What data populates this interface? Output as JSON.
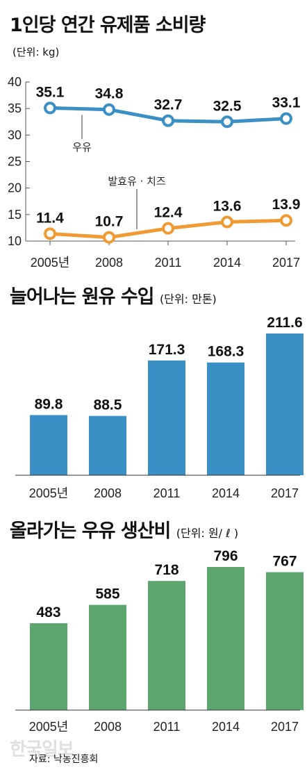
{
  "title1": "1인당 연간 유제품 소비량",
  "unit1": "(단위: kg)",
  "title2": "늘어나는 원유 수입",
  "unit2": "(단위: 만톤)",
  "title3": "올라가는 우유 생산비",
  "unit3": "(단위: 원/ ℓ )",
  "source": "자료: 낙농진흥회",
  "watermark": "한국일보",
  "colors": {
    "milk": "#3a8fc4",
    "fermented": "#ef9a32",
    "import_bar": "#3a8fc4",
    "cost_bar": "#5da56e"
  },
  "chart_data": [
    {
      "type": "line",
      "title": "1인당 연간 유제품 소비량",
      "x": [
        "2005년",
        "2008",
        "2011",
        "2014",
        "2017"
      ],
      "yticks": [
        "40",
        "35",
        "30",
        "25",
        "20",
        "15",
        "10"
      ],
      "ylim": [
        10,
        40
      ],
      "series": [
        {
          "name": "우유",
          "values": [
            35.1,
            34.8,
            32.7,
            32.5,
            33.1
          ],
          "labels": [
            "35.1",
            "34.8",
            "32.7",
            "32.5",
            "33.1"
          ]
        },
        {
          "name": "발효유 · 치즈",
          "values": [
            11.4,
            10.7,
            12.4,
            13.6,
            13.9
          ],
          "labels": [
            "11.4",
            "10.7",
            "12.4",
            "13.6",
            "13.9"
          ]
        }
      ]
    },
    {
      "type": "bar",
      "title": "늘어나는 원유 수입",
      "categories": [
        "2005년",
        "2008",
        "2011",
        "2014",
        "2017"
      ],
      "values": [
        89.8,
        88.5,
        171.3,
        168.3,
        211.6
      ],
      "labels": [
        "89.8",
        "88.5",
        "171.3",
        "168.3",
        "211.6"
      ]
    },
    {
      "type": "bar",
      "title": "올라가는 우유 생산비",
      "categories": [
        "2005년",
        "2008",
        "2011",
        "2014",
        "2017"
      ],
      "values": [
        483,
        585,
        718,
        796,
        767
      ],
      "labels": [
        "483",
        "585",
        "718",
        "796",
        "767"
      ]
    }
  ]
}
